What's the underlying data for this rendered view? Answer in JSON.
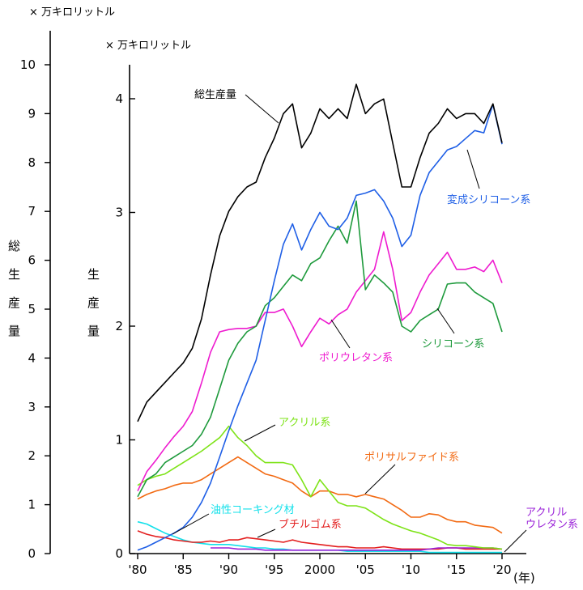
{
  "chart_data": {
    "type": "line",
    "x_ticks": [
      "'80",
      "'85",
      "'90",
      "'95",
      "2000",
      "'05",
      "'10",
      "'15",
      "'20"
    ],
    "x_tick_values": [
      1980,
      1985,
      1990,
      1995,
      2000,
      2005,
      2010,
      2015,
      2020
    ],
    "x_unit": "(年)",
    "xlim": [
      1980,
      2021
    ],
    "left_axis": {
      "unit": "× 万キロリットル",
      "title_chars": [
        "総",
        "生",
        "産",
        "量"
      ],
      "ticks": [
        0,
        1,
        2,
        3,
        4,
        5,
        6,
        7,
        8,
        9,
        10
      ],
      "ylim": [
        0,
        10
      ]
    },
    "right_axis": {
      "unit": "× 万キロリットル",
      "title_chars": [
        "生",
        "産",
        "量"
      ],
      "ticks": [
        0,
        1,
        2,
        3,
        4
      ],
      "ylim": [
        0,
        4
      ]
    },
    "series": [
      {
        "name": "総生産量",
        "axis": "left",
        "color": "#000000",
        "x": [
          1980,
          1981,
          1982,
          1983,
          1984,
          1985,
          1986,
          1987,
          1988,
          1989,
          1990,
          1991,
          1992,
          1993,
          1994,
          1995,
          1996,
          1997,
          1998,
          1999,
          2000,
          2001,
          2002,
          2003,
          2004,
          2005,
          2006,
          2007,
          2008,
          2009,
          2010,
          2011,
          2012,
          2013,
          2014,
          2015,
          2016,
          2017,
          2018,
          2019,
          2020
        ],
        "y": [
          2.7,
          3.1,
          3.3,
          3.5,
          3.7,
          3.9,
          4.2,
          4.8,
          5.7,
          6.5,
          7.0,
          7.3,
          7.5,
          7.6,
          8.1,
          8.5,
          9.0,
          9.2,
          8.3,
          8.6,
          9.1,
          8.9,
          9.1,
          8.9,
          9.6,
          9.0,
          9.2,
          9.3,
          8.4,
          7.5,
          7.5,
          8.1,
          8.6,
          8.8,
          9.1,
          8.9,
          9.0,
          9.0,
          8.8,
          9.2,
          8.4
        ]
      },
      {
        "name": "変成シリコーン系",
        "axis": "right",
        "color": "#1f5fe6",
        "x": [
          1980,
          1981,
          1982,
          1983,
          1984,
          1985,
          1986,
          1987,
          1988,
          1989,
          1990,
          1991,
          1992,
          1993,
          1994,
          1995,
          1996,
          1997,
          1998,
          1999,
          2000,
          2001,
          2002,
          2003,
          2004,
          2005,
          2006,
          2007,
          2008,
          2009,
          2010,
          2011,
          2012,
          2013,
          2014,
          2015,
          2016,
          2017,
          2018,
          2019,
          2020
        ],
        "y": [
          0.03,
          0.06,
          0.1,
          0.14,
          0.18,
          0.23,
          0.32,
          0.45,
          0.62,
          0.85,
          1.08,
          1.3,
          1.5,
          1.7,
          2.05,
          2.4,
          2.72,
          2.9,
          2.67,
          2.85,
          3.0,
          2.88,
          2.85,
          2.95,
          3.15,
          3.17,
          3.2,
          3.1,
          2.95,
          2.7,
          2.8,
          3.15,
          3.35,
          3.45,
          3.55,
          3.58,
          3.65,
          3.72,
          3.7,
          3.95,
          3.6
        ]
      },
      {
        "name": "シリコーン系",
        "axis": "right",
        "color": "#1e9a3c",
        "x": [
          1980,
          1981,
          1982,
          1983,
          1984,
          1985,
          1986,
          1987,
          1988,
          1989,
          1990,
          1991,
          1992,
          1993,
          1994,
          1995,
          1996,
          1997,
          1998,
          1999,
          2000,
          2001,
          2002,
          2003,
          2004,
          2005,
          2006,
          2007,
          2008,
          2009,
          2010,
          2011,
          2012,
          2013,
          2014,
          2015,
          2016,
          2017,
          2018,
          2019,
          2020
        ],
        "y": [
          0.5,
          0.65,
          0.7,
          0.8,
          0.85,
          0.9,
          0.95,
          1.05,
          1.2,
          1.45,
          1.7,
          1.85,
          1.95,
          2.0,
          2.18,
          2.25,
          2.35,
          2.45,
          2.4,
          2.55,
          2.6,
          2.75,
          2.88,
          2.73,
          3.1,
          2.32,
          2.45,
          2.38,
          2.3,
          2.0,
          1.95,
          2.05,
          2.1,
          2.15,
          2.37,
          2.38,
          2.38,
          2.3,
          2.25,
          2.2,
          1.95
        ]
      },
      {
        "name": "ポリウレタン系",
        "axis": "right",
        "color": "#ee1bcf",
        "x": [
          1980,
          1981,
          1982,
          1983,
          1984,
          1985,
          1986,
          1987,
          1988,
          1989,
          1990,
          1991,
          1992,
          1993,
          1994,
          1995,
          1996,
          1997,
          1998,
          1999,
          2000,
          2001,
          2002,
          2003,
          2004,
          2005,
          2006,
          2007,
          2008,
          2009,
          2010,
          2011,
          2012,
          2013,
          2014,
          2015,
          2016,
          2017,
          2018,
          2019,
          2020
        ],
        "y": [
          0.55,
          0.72,
          0.82,
          0.93,
          1.03,
          1.12,
          1.25,
          1.5,
          1.77,
          1.95,
          1.97,
          1.98,
          1.98,
          2.0,
          2.12,
          2.12,
          2.15,
          2.0,
          1.82,
          1.95,
          2.07,
          2.02,
          2.1,
          2.15,
          2.3,
          2.4,
          2.5,
          2.83,
          2.5,
          2.05,
          2.12,
          2.3,
          2.45,
          2.55,
          2.65,
          2.5,
          2.5,
          2.52,
          2.48,
          2.58,
          2.38
        ]
      },
      {
        "name": "アクリル系",
        "axis": "right",
        "color": "#7ee318",
        "x": [
          1980,
          1981,
          1982,
          1983,
          1984,
          1985,
          1986,
          1987,
          1988,
          1989,
          1990,
          1991,
          1992,
          1993,
          1994,
          1995,
          1996,
          1997,
          1998,
          1999,
          2000,
          2001,
          2002,
          2003,
          2004,
          2005,
          2006,
          2007,
          2008,
          2009,
          2010,
          2011,
          2012,
          2013,
          2014,
          2015,
          2016,
          2017,
          2018,
          2019,
          2020
        ],
        "y": [
          0.6,
          0.65,
          0.68,
          0.7,
          0.75,
          0.8,
          0.85,
          0.9,
          0.96,
          1.02,
          1.12,
          1.02,
          0.95,
          0.86,
          0.8,
          0.8,
          0.8,
          0.78,
          0.65,
          0.5,
          0.65,
          0.55,
          0.45,
          0.42,
          0.42,
          0.4,
          0.35,
          0.3,
          0.26,
          0.23,
          0.2,
          0.18,
          0.15,
          0.12,
          0.08,
          0.07,
          0.07,
          0.06,
          0.05,
          0.05,
          0.04
        ]
      },
      {
        "name": "ポリサルファイド系",
        "axis": "right",
        "color": "#f26a13",
        "x": [
          1980,
          1981,
          1982,
          1983,
          1984,
          1985,
          1986,
          1987,
          1988,
          1989,
          1990,
          1991,
          1992,
          1993,
          1994,
          1995,
          1996,
          1997,
          1998,
          1999,
          2000,
          2001,
          2002,
          2003,
          2004,
          2005,
          2006,
          2007,
          2008,
          2009,
          2010,
          2011,
          2012,
          2013,
          2014,
          2015,
          2016,
          2017,
          2018,
          2019,
          2020
        ],
        "y": [
          0.48,
          0.52,
          0.55,
          0.57,
          0.6,
          0.62,
          0.62,
          0.65,
          0.7,
          0.75,
          0.8,
          0.85,
          0.8,
          0.75,
          0.7,
          0.68,
          0.65,
          0.62,
          0.55,
          0.5,
          0.55,
          0.55,
          0.52,
          0.52,
          0.5,
          0.52,
          0.5,
          0.48,
          0.43,
          0.38,
          0.32,
          0.32,
          0.35,
          0.34,
          0.3,
          0.28,
          0.28,
          0.25,
          0.24,
          0.23,
          0.18
        ]
      },
      {
        "name": "油性コーキング材",
        "axis": "right",
        "color": "#13e0ea",
        "x": [
          1980,
          1981,
          1982,
          1983,
          1984,
          1985,
          1986,
          1987,
          1988,
          1989,
          1990,
          1991,
          1992,
          1993,
          1994,
          1995,
          1996,
          1997,
          1998,
          1999,
          2000,
          2001,
          2002,
          2003,
          2004,
          2005,
          2006,
          2007,
          2008,
          2009,
          2010,
          2011,
          2012,
          2013,
          2014,
          2015,
          2016,
          2017,
          2018,
          2019,
          2020
        ],
        "y": [
          0.28,
          0.26,
          0.22,
          0.18,
          0.15,
          0.12,
          0.1,
          0.09,
          0.08,
          0.08,
          0.08,
          0.07,
          0.06,
          0.05,
          0.05,
          0.04,
          0.04,
          0.03,
          0.03,
          0.03,
          0.03,
          0.03,
          0.03,
          0.02,
          0.02,
          0.02,
          0.02,
          0.02,
          0.02,
          0.02,
          0.02,
          0.02,
          0.01,
          0.01,
          0.01,
          0.01,
          0.01,
          0.01,
          0.01,
          0.01,
          0.01
        ]
      },
      {
        "name": "ブチルゴム系",
        "axis": "right",
        "color": "#e31e1e",
        "x": [
          1980,
          1981,
          1982,
          1983,
          1984,
          1985,
          1986,
          1987,
          1988,
          1989,
          1990,
          1991,
          1992,
          1993,
          1994,
          1995,
          1996,
          1997,
          1998,
          1999,
          2000,
          2001,
          2002,
          2003,
          2004,
          2005,
          2006,
          2007,
          2008,
          2009,
          2010,
          2011,
          2012,
          2013,
          2014,
          2015,
          2016,
          2017,
          2018,
          2019,
          2020
        ],
        "y": [
          0.2,
          0.17,
          0.15,
          0.14,
          0.12,
          0.11,
          0.1,
          0.1,
          0.11,
          0.1,
          0.12,
          0.12,
          0.14,
          0.13,
          0.12,
          0.11,
          0.1,
          0.12,
          0.1,
          0.09,
          0.08,
          0.07,
          0.06,
          0.06,
          0.05,
          0.05,
          0.05,
          0.06,
          0.05,
          0.04,
          0.04,
          0.04,
          0.04,
          0.04,
          0.05,
          0.05,
          0.04,
          0.04,
          0.04,
          0.04,
          0.04
        ]
      },
      {
        "name": "アクリルウレタン系",
        "axis": "right",
        "color": "#9a22d8",
        "x": [
          1988,
          1989,
          1990,
          1991,
          1992,
          1993,
          1994,
          1995,
          1996,
          1997,
          1998,
          1999,
          2000,
          2001,
          2002,
          2003,
          2004,
          2005,
          2006,
          2007,
          2008,
          2009,
          2010,
          2011,
          2012,
          2013,
          2014,
          2015,
          2016,
          2017,
          2018,
          2019,
          2020
        ],
        "y": [
          0.05,
          0.05,
          0.05,
          0.04,
          0.04,
          0.04,
          0.03,
          0.03,
          0.03,
          0.03,
          0.03,
          0.03,
          0.03,
          0.03,
          0.03,
          0.03,
          0.03,
          0.03,
          0.03,
          0.03,
          0.03,
          0.03,
          0.03,
          0.03,
          0.04,
          0.05,
          0.05,
          0.05,
          0.05,
          0.05,
          0.05,
          0.05,
          0.04
        ]
      }
    ],
    "labels": [
      {
        "text": "総生産量",
        "series": 0
      },
      {
        "text": "変成シリコーン系",
        "series": 1
      },
      {
        "text": "シリコーン系",
        "series": 2
      },
      {
        "text": "ポリウレタン系",
        "series": 3
      },
      {
        "text": "アクリル系",
        "series": 4
      },
      {
        "text": "ポリサルファイド系",
        "series": 5
      },
      {
        "text": "油性コーキング材",
        "series": 6
      },
      {
        "text": "ブチルゴム系",
        "series": 7
      },
      {
        "text": "アクリル",
        "series": 8
      },
      {
        "text": "ウレタン系",
        "series": 8
      }
    ],
    "grid": false,
    "legend": "none"
  }
}
